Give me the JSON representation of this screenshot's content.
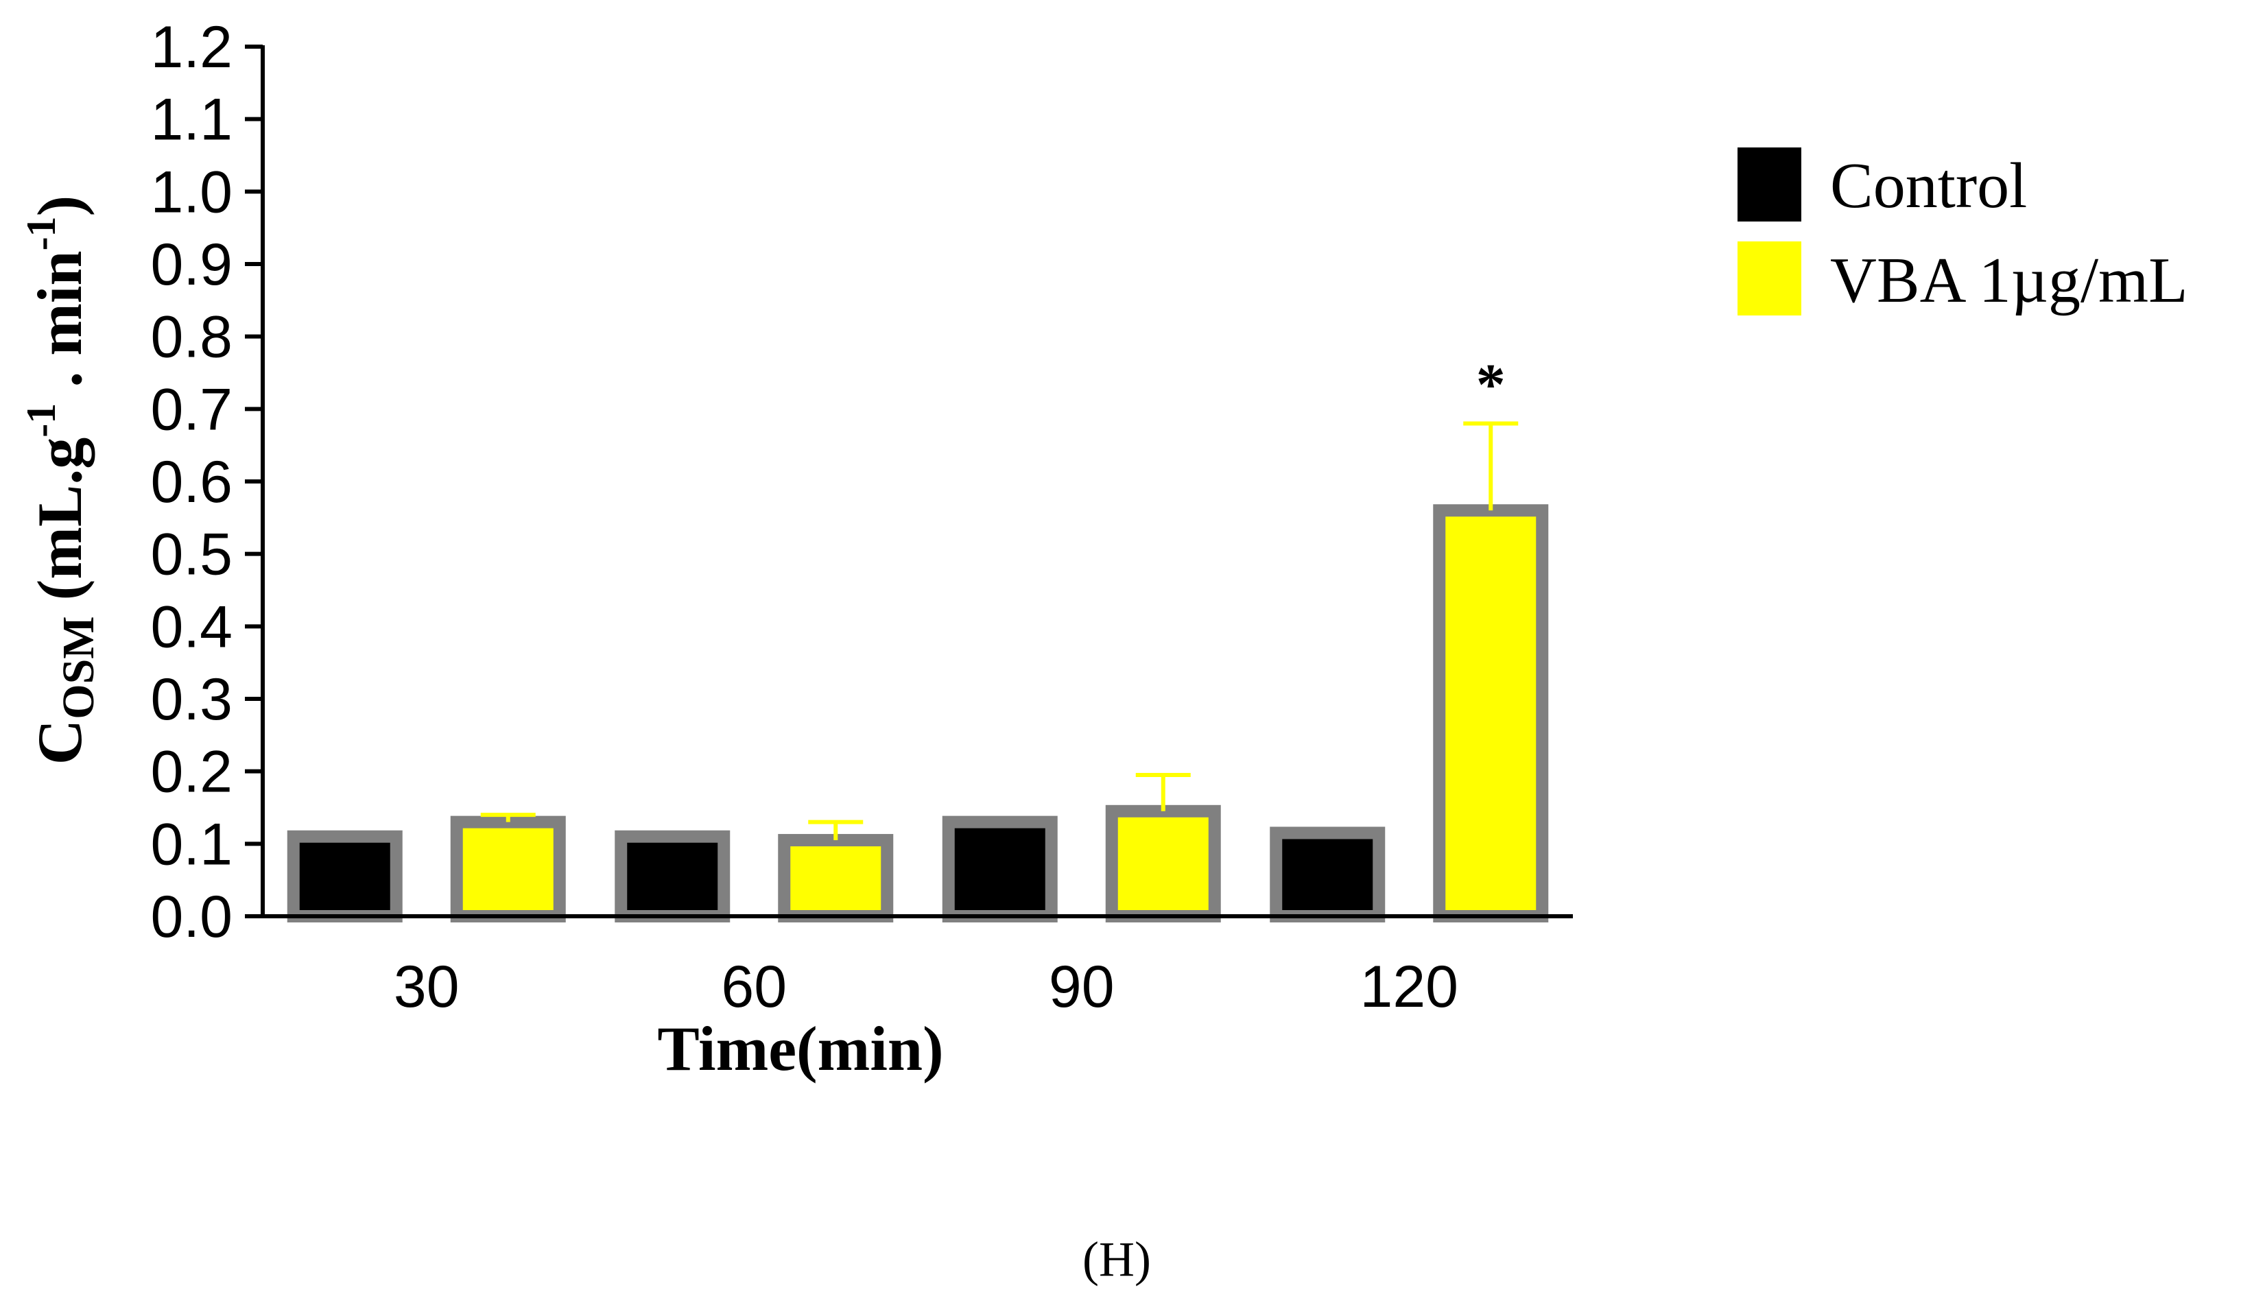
{
  "chart_data": {
    "type": "bar",
    "categories": [
      "30",
      "60",
      "90",
      "120"
    ],
    "series": [
      {
        "name": "Control",
        "values": [
          0.11,
          0.11,
          0.13,
          0.115
        ],
        "errors": [
          0,
          0,
          0,
          0
        ],
        "color": "#000000"
      },
      {
        "name": "VBA 1µg/mL",
        "values": [
          0.13,
          0.105,
          0.145,
          0.56
        ],
        "errors": [
          0.01,
          0.025,
          0.05,
          0.12
        ],
        "color": "#ffff00"
      }
    ],
    "bar_outline_color": "#808080",
    "xlabel": "Time(min)",
    "ylabel_main": "C",
    "ylabel_sub": "OSM",
    "ylabel_rest": " (mL.g",
    "ylabel_sup1": "-1",
    "ylabel_mid": " . min",
    "ylabel_sup2": "-1",
    "ylabel_end": ")",
    "ylim": [
      0,
      1.2
    ],
    "yticks": [
      "0.0",
      "0.1",
      "0.2",
      "0.3",
      "0.4",
      "0.5",
      "0.6",
      "0.7",
      "0.8",
      "0.9",
      "1.0",
      "1.1",
      "1.2"
    ],
    "annotations": [
      {
        "category": "120",
        "series": "VBA 1µg/mL",
        "text": "*"
      }
    ],
    "legend_position": "top-right",
    "panel_label": "(H)"
  }
}
